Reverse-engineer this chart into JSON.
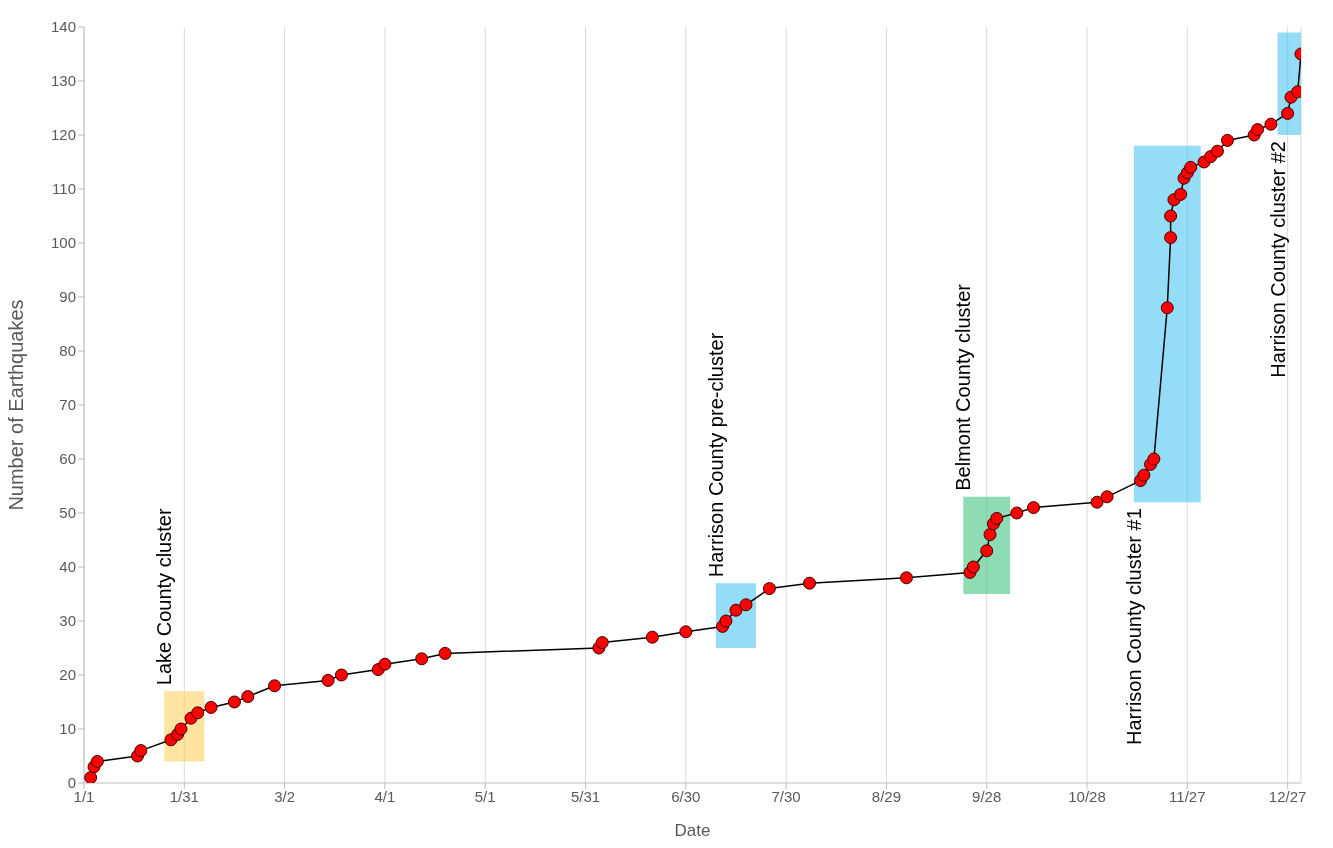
{
  "chart_data": {
    "type": "line",
    "xlabel": "Date",
    "ylabel": "Number of Earthquakes",
    "x": [
      "--01-03",
      "--01-04",
      "--01-05",
      "--01-17",
      "--01-18",
      "--01-27",
      "--01-29",
      "--01-30",
      "--02-02",
      "--02-04",
      "--02-08",
      "--02-15",
      "--02-19",
      "--02-27",
      "--03-15",
      "--03-19",
      "--03-30",
      "--04-01",
      "--04-12",
      "--04-19",
      "--06-04",
      "--06-05",
      "--06-20",
      "--06-30",
      "--07-11",
      "--07-12",
      "--07-15",
      "--07-18",
      "--07-25",
      "--08-06",
      "--09-04",
      "--09-23",
      "--09-24",
      "--09-28",
      "--09-29",
      "--09-30",
      "--10-01",
      "--10-07",
      "--10-12",
      "--10-31",
      "--11-03",
      "--11-13",
      "--11-14",
      "--11-16",
      "--11-17",
      "--11-21",
      "--11-22",
      "--11-22",
      "--11-23",
      "--11-25",
      "--11-26",
      "--11-27",
      "--11-28",
      "--12-02",
      "--12-04",
      "--12-06",
      "--12-09",
      "--12-17",
      "--12-18",
      "--12-22",
      "--12-27",
      "--12-28",
      "--12-30",
      "--12-31"
    ],
    "series": [
      {
        "color": "#000000",
        "values": [
          1,
          3,
          4,
          5,
          6,
          8,
          9,
          10,
          12,
          13,
          14,
          15,
          16,
          18,
          19,
          20,
          21,
          22,
          23,
          24,
          25,
          26,
          27,
          28,
          29,
          30,
          32,
          33,
          36,
          37,
          38,
          39,
          40,
          43,
          46,
          48,
          49,
          50,
          51,
          52,
          53,
          56,
          57,
          59,
          60,
          88,
          101,
          105,
          108,
          109,
          112,
          113,
          114,
          115,
          116,
          117,
          119,
          120,
          121,
          122,
          124,
          127,
          128,
          135
        ],
        "colors": [
          "#ff0000",
          "#ff0000",
          "#ff0000",
          "#ff0000",
          "#ff0000",
          "#ff0000",
          "#ff0000",
          "#ff0000",
          "#ff0000",
          "#ff0000",
          "#ff0000",
          "#ff0000",
          "#ff0000",
          "#ff0000",
          "#ff0000",
          "#ff0000",
          "#ff0000",
          "#ff0000",
          "#ff0000",
          "#ff0000",
          "#ff0000",
          "#ff0000",
          "#ff0000",
          "#ff0000",
          "#ff0000",
          "#ff0000",
          "#ff0000",
          "#ff0000",
          "#ff0000",
          "#ff0000",
          "#ff0000",
          "#ff0000",
          "#ff0000",
          "#ff0000",
          "#ff0000",
          "#ff0000",
          "#ff0000",
          "#ff0000",
          "#ff0000",
          "#ff0000",
          "#ff0000",
          "#ff0000",
          "#ff0000",
          "#ff0000",
          "#ff0000",
          "#ff0000",
          "#ff0000",
          "#ff0000",
          "#ff0000",
          "#ff0000",
          "#ff0000",
          "#ff0000",
          "#ff0000",
          "#ff0000",
          "#ff0000",
          "#ff0000",
          "#ff0000",
          "#ff0000",
          "#ff0000",
          "#ff0000",
          "#ff0000",
          "#ff0000",
          "#ff0000",
          "#ff0000"
        ]
      }
    ],
    "marker": "circle",
    "line_style": "solid",
    "xlim": [
      "--01-01",
      "--12-31"
    ],
    "xticks": [
      {
        "value": "--01-01",
        "label": "1/1"
      },
      {
        "value": "--01-31",
        "label": "1/31"
      },
      {
        "value": "--03-02",
        "label": "3/2"
      },
      {
        "value": "--04-01",
        "label": "4/1"
      },
      {
        "value": "--05-01",
        "label": "5/1"
      },
      {
        "value": "--05-31",
        "label": "5/31"
      },
      {
        "value": "--06-30",
        "label": "6/30"
      },
      {
        "value": "--07-30",
        "label": "7/30"
      },
      {
        "value": "--08-29",
        "label": "8/29"
      },
      {
        "value": "--09-28",
        "label": "9/28"
      },
      {
        "value": "--10-28",
        "label": "10/28"
      },
      {
        "value": "--11-27",
        "label": "11/27"
      },
      {
        "value": "--12-27",
        "label": "12/27"
      }
    ],
    "ylim": [
      0,
      140
    ],
    "yticks": [
      0,
      10,
      20,
      30,
      40,
      50,
      60,
      70,
      80,
      90,
      100,
      110,
      120,
      130,
      140
    ],
    "grid": "x",
    "bands": [
      {
        "axis": "x",
        "from": "--01-25",
        "to": "--02-06",
        "label": "Lake County cluster",
        "color": "#ffd66e"
      },
      {
        "axis": "x",
        "from": "--07-09",
        "to": "--07-21",
        "label": "Harrison County pre-cluster",
        "color": "#5ccbf2"
      },
      {
        "axis": "x",
        "from": "--09-21",
        "to": "--10-05",
        "label": "Belmont County cluster",
        "color": "#52c98a"
      },
      {
        "axis": "x",
        "from": "--11-11",
        "to": "--12-01",
        "label": "Harrison County cluster #1",
        "color": "#5ccbf2"
      },
      {
        "axis": "x",
        "from": "--12-24",
        "to": "--12-31",
        "label": "Harrison County cluster #2",
        "color": "#5ccbf2"
      }
    ]
  }
}
